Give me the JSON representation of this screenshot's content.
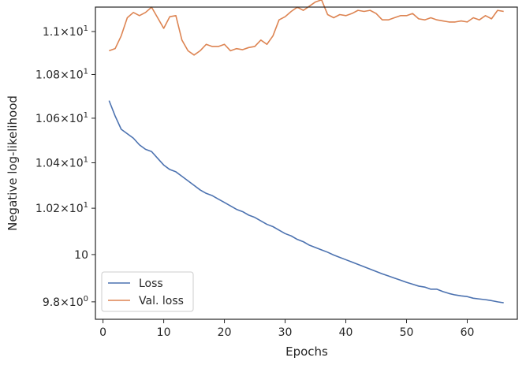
{
  "chart_data": {
    "type": "line",
    "xlabel": "Epochs",
    "ylabel": "Negative log-likelihood",
    "xlim": [
      -1.25,
      68.25
    ],
    "ylim": [
      9.7272,
      11.1155
    ],
    "y_scale": "log",
    "grid": false,
    "legend_position": "lower-left",
    "x_ticks": [
      0,
      10,
      20,
      30,
      40,
      50,
      60
    ],
    "x_tick_labels": [
      "0",
      "10",
      "20",
      "30",
      "40",
      "50",
      "60"
    ],
    "y_ticks": [
      9.8,
      10.0,
      10.2,
      10.4,
      10.6,
      10.8,
      11.0
    ],
    "y_tick_labels": [
      {
        "base": "9.8",
        "exp": "0"
      },
      {
        "base": "10",
        "exp": ""
      },
      {
        "base": "1.02",
        "exp": "1"
      },
      {
        "base": "1.04",
        "exp": "1"
      },
      {
        "base": "1.06",
        "exp": "1"
      },
      {
        "base": "1.08",
        "exp": "1"
      },
      {
        "base": "1.1",
        "exp": "1"
      }
    ],
    "x": [
      1,
      2,
      3,
      4,
      5,
      6,
      7,
      8,
      9,
      10,
      11,
      12,
      13,
      14,
      15,
      16,
      17,
      18,
      19,
      20,
      21,
      22,
      23,
      24,
      25,
      26,
      27,
      28,
      29,
      30,
      31,
      32,
      33,
      34,
      35,
      36,
      37,
      38,
      39,
      40,
      41,
      42,
      43,
      44,
      45,
      46,
      47,
      48,
      49,
      50,
      51,
      52,
      53,
      54,
      55,
      56,
      57,
      58,
      59,
      60,
      61,
      62,
      63,
      64,
      65,
      66
    ],
    "series": [
      {
        "name": "Loss",
        "color": "#4c72b0",
        "values": [
          10.68,
          10.61,
          10.55,
          10.53,
          10.51,
          10.48,
          10.46,
          10.45,
          10.42,
          10.39,
          10.37,
          10.36,
          10.34,
          10.32,
          10.3,
          10.28,
          10.265,
          10.255,
          10.24,
          10.225,
          10.21,
          10.195,
          10.185,
          10.17,
          10.16,
          10.145,
          10.13,
          10.12,
          10.105,
          10.09,
          10.08,
          10.065,
          10.055,
          10.04,
          10.03,
          10.02,
          10.01,
          9.998,
          9.988,
          9.978,
          9.968,
          9.958,
          9.948,
          9.938,
          9.928,
          9.918,
          9.909,
          9.9,
          9.891,
          9.882,
          9.874,
          9.866,
          9.862,
          9.853,
          9.853,
          9.843,
          9.835,
          9.829,
          9.825,
          9.822,
          9.815,
          9.812,
          9.809,
          9.805,
          9.8,
          9.796
        ]
      },
      {
        "name": "Val. loss",
        "color": "#dd8452",
        "values": [
          10.91,
          10.92,
          10.98,
          11.065,
          11.09,
          11.075,
          11.09,
          11.115,
          11.065,
          11.015,
          11.07,
          11.075,
          10.96,
          10.91,
          10.89,
          10.91,
          10.94,
          10.93,
          10.93,
          10.94,
          10.91,
          10.92,
          10.915,
          10.925,
          10.93,
          10.96,
          10.94,
          10.98,
          11.055,
          11.07,
          11.095,
          11.115,
          11.1,
          11.12,
          11.14,
          11.15,
          11.08,
          11.065,
          11.08,
          11.075,
          11.085,
          11.1,
          11.095,
          11.1,
          11.085,
          11.055,
          11.055,
          11.065,
          11.075,
          11.075,
          11.085,
          11.06,
          11.055,
          11.065,
          11.055,
          11.05,
          11.045,
          11.045,
          11.05,
          11.045,
          11.065,
          11.055,
          11.075,
          11.06,
          11.1,
          11.095
        ]
      }
    ]
  }
}
